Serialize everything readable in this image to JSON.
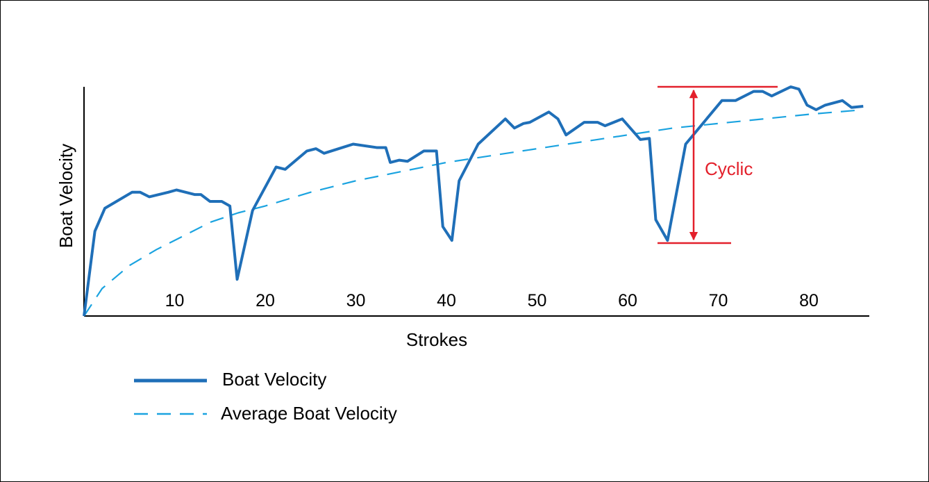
{
  "chart_data": {
    "type": "line",
    "xlabel": "Strokes",
    "ylabel": "Boat Velocity",
    "xlim": [
      0,
      86
    ],
    "ylim": [
      0,
      100
    ],
    "x_ticks": [
      "10",
      "20",
      "30",
      "40",
      "50",
      "60",
      "70",
      "80"
    ],
    "x_tick_values": [
      10,
      20,
      30,
      40,
      50,
      60,
      70,
      80
    ],
    "grid": false,
    "legend_position": "bottom-left",
    "series": [
      {
        "name": "Boat Velocity",
        "style": "solid",
        "color": "#1f6fb8",
        "x": [
          0,
          1.2,
          2.3,
          5.3,
          6.2,
          7.2,
          9.3,
          10.2,
          12.2,
          12.9,
          13.9,
          15.2,
          16.1,
          16.9,
          18.6,
          21.2,
          22.2,
          24.6,
          25.6,
          26.5,
          29.7,
          32.3,
          33.3,
          33.8,
          34.8,
          35.7,
          37.5,
          38.9,
          39.6,
          40.6,
          41.4,
          43.5,
          46.5,
          47.5,
          48.5,
          49.2,
          51.3,
          52.3,
          53.2,
          55.2,
          56.7,
          57.5,
          59.4,
          61.4,
          62.4,
          63.1,
          64.4,
          66.4,
          70.4,
          71.9,
          73.9,
          74.9,
          75.9,
          78.0,
          78.9,
          79.8,
          80.8,
          81.8,
          83.7,
          84.7,
          86.0
        ],
        "values": [
          0,
          37,
          47,
          54,
          54,
          52,
          54,
          55,
          53,
          53,
          50,
          50,
          48,
          16,
          46,
          65,
          64,
          72,
          73,
          71,
          75,
          73.5,
          73.5,
          67,
          68,
          67.5,
          72,
          72,
          39,
          33,
          59,
          75,
          86,
          82,
          84,
          84.5,
          89,
          86,
          79,
          84.5,
          84.5,
          83,
          86,
          77,
          77.5,
          42,
          33,
          75,
          94,
          94,
          98,
          98,
          96,
          100,
          99,
          92,
          90,
          92,
          94,
          91,
          91.5
        ]
      },
      {
        "name": "Average Boat Velocity",
        "style": "dashed",
        "color": "#1aa3e0",
        "x": [
          0,
          2,
          5,
          8,
          11,
          14,
          17,
          20,
          25,
          30,
          35,
          40,
          45,
          50,
          55,
          60,
          65,
          70,
          75,
          80,
          86
        ],
        "values": [
          0,
          12,
          22,
          29,
          35,
          41,
          45,
          48,
          54,
          59,
          63,
          67,
          70,
          73,
          76,
          79,
          82,
          84,
          86,
          88,
          90
        ]
      }
    ],
    "annotations": [
      {
        "text": "Cyclic",
        "color": "#e3202b",
        "from_y": 33,
        "to_y": 100,
        "x": 66
      }
    ]
  }
}
